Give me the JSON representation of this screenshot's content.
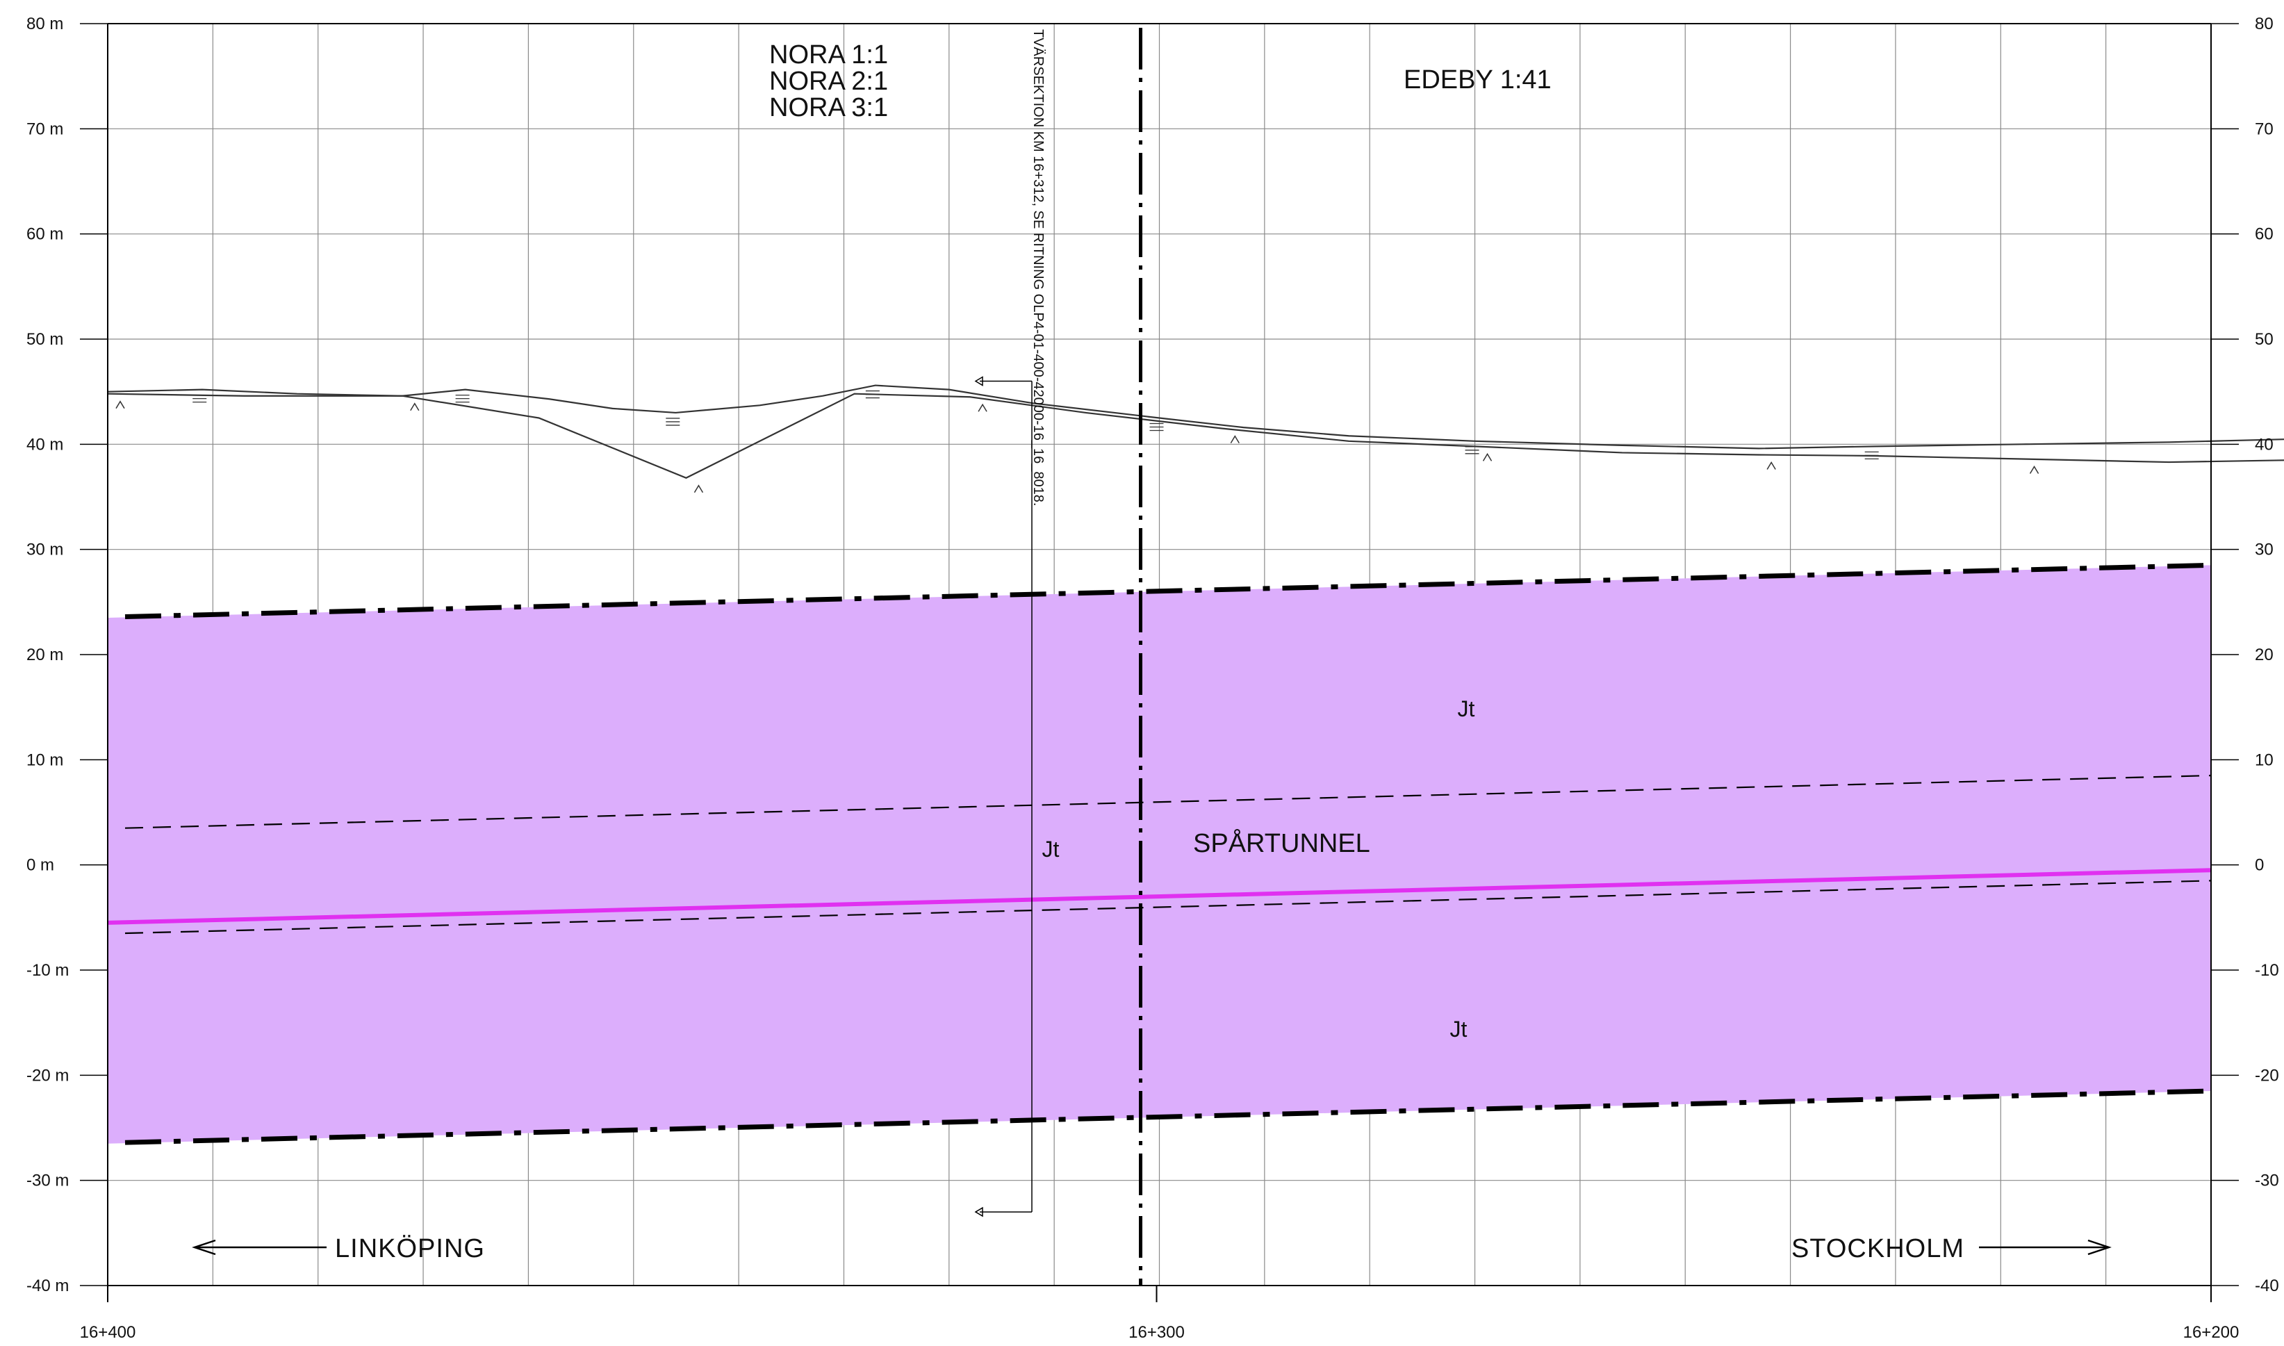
{
  "y_axis": {
    "ticks": [
      {
        "value": 80,
        "left_label": "80 m",
        "right_label": "80"
      },
      {
        "value": 70,
        "left_label": "70 m",
        "right_label": "70"
      },
      {
        "value": 60,
        "left_label": "60 m",
        "right_label": "60"
      },
      {
        "value": 50,
        "left_label": "50 m",
        "right_label": "50"
      },
      {
        "value": 40,
        "left_label": "40 m",
        "right_label": "40"
      },
      {
        "value": 30,
        "left_label": "30 m",
        "right_label": "30"
      },
      {
        "value": 20,
        "left_label": "20 m",
        "right_label": "20"
      },
      {
        "value": 10,
        "left_label": "10 m",
        "right_label": "10"
      },
      {
        "value": 0,
        "left_label": "0 m",
        "right_label": "0"
      },
      {
        "value": -10,
        "left_label": "-10 m",
        "right_label": "-10"
      },
      {
        "value": -20,
        "left_label": "-20 m",
        "right_label": "-20"
      },
      {
        "value": -30,
        "left_label": "-30 m",
        "right_label": "-30"
      },
      {
        "value": -40,
        "left_label": "-40 m",
        "right_label": "-40"
      }
    ]
  },
  "stations": [
    "16+400",
    "16+300",
    "16+200"
  ],
  "chainage": {
    "start": 400,
    "end": 200
  },
  "labels": {
    "nora": [
      "NORA 1:1",
      "NORA 2:1",
      "NORA 3:1"
    ],
    "edeby": "EDEBY 1:41",
    "cross_section_note": "TVÄRSEKTION KM 16+312, SE RITNING OLP4-01-400-42000-16_16_8018.",
    "tunnel": "SPÅRTUNNEL",
    "rock_upper": "Jt",
    "rock_middle": "Jt",
    "rock_lower": "Jt",
    "direction_left": "LINKÖPING",
    "direction_right": "STOCKHOLM"
  },
  "colors": {
    "zone_fill": "#dcaefc",
    "track_line": "#e030f0",
    "line": "#000000",
    "grid": "#8a8a8a"
  },
  "profile": {
    "zone_top": {
      "start": 23.5,
      "end": 28.5
    },
    "zone_bottom": {
      "start": -26.5,
      "end": -21.5
    },
    "track": {
      "start": -5.5,
      "end": -0.5
    },
    "dashed_upper": {
      "start": 3.5,
      "end": 8.5
    },
    "dashed_lower": {
      "start": -6.5,
      "end": -1.5
    },
    "ground_upper": [
      [
        400,
        45
      ],
      [
        391,
        45.2
      ],
      [
        382,
        44.8
      ],
      [
        372,
        44.6
      ],
      [
        366,
        45.2
      ],
      [
        358,
        44.3
      ],
      [
        352,
        43.4
      ],
      [
        346,
        43
      ],
      [
        338,
        43.7
      ],
      [
        332,
        44.6
      ],
      [
        327,
        45.6
      ],
      [
        320,
        45.2
      ],
      [
        312,
        43.9
      ],
      [
        300,
        42.5
      ],
      [
        292,
        41.6
      ],
      [
        282,
        40.8
      ],
      [
        270,
        40.3
      ],
      [
        256,
        39.9
      ],
      [
        243,
        39.6
      ],
      [
        232,
        39.8
      ],
      [
        218,
        40
      ],
      [
        204,
        40.2
      ],
      [
        192,
        40.5
      ],
      [
        178,
        41.1
      ],
      [
        166,
        41.9
      ],
      [
        154,
        43
      ],
      [
        140,
        44.8
      ],
      [
        130,
        46.8
      ],
      [
        120,
        48.2
      ],
      [
        110,
        49.5
      ],
      [
        100,
        50.5
      ],
      [
        92,
        51.3
      ],
      [
        84,
        51
      ]
    ],
    "ground_lower": [
      [
        400,
        44.8
      ],
      [
        387,
        44.6
      ],
      [
        372,
        44.6
      ],
      [
        359,
        42.5
      ],
      [
        345,
        36.8
      ],
      [
        329,
        44.8
      ],
      [
        318,
        44.5
      ],
      [
        307,
        43
      ],
      [
        294,
        41.5
      ],
      [
        282,
        40.3
      ],
      [
        270,
        39.8
      ],
      [
        256,
        39.2
      ],
      [
        243,
        39
      ],
      [
        232,
        38.9
      ],
      [
        218,
        38.6
      ],
      [
        204,
        38.3
      ],
      [
        192,
        38.5
      ],
      [
        178,
        38.3
      ],
      [
        166,
        37.8
      ],
      [
        154,
        37.6
      ],
      [
        141,
        40.9
      ],
      [
        127,
        43.2
      ],
      [
        112,
        45.6
      ],
      [
        98,
        48
      ],
      [
        86,
        50
      ]
    ]
  }
}
